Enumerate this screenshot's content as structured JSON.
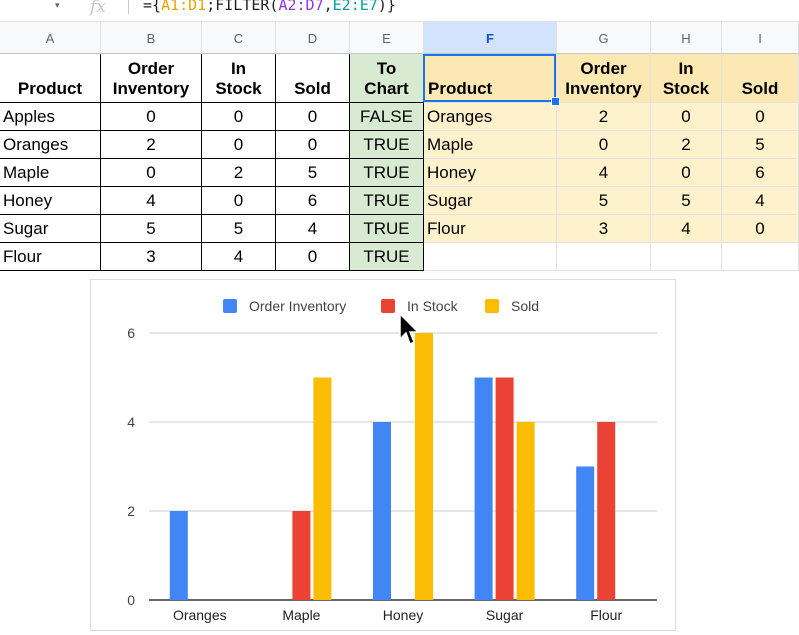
{
  "formula_bar": {
    "dropdown": "▾",
    "fx": "fx",
    "formula_prefix": "={",
    "ref1": "A1:D1",
    "formula_mid": ";FILTER(",
    "ref2": "A2:D7",
    "comma": ",",
    "ref3": "E2:E7",
    "formula_suffix": ")}"
  },
  "columns": [
    "A",
    "B",
    "C",
    "D",
    "E",
    "F",
    "G",
    "H",
    "I"
  ],
  "selected_column": "F",
  "source_table": {
    "headers": [
      "Product",
      "Order\nInventory",
      "In\nStock",
      "Sold",
      "To\nChart"
    ],
    "rows": [
      [
        "Apples",
        "0",
        "0",
        "0",
        "FALSE"
      ],
      [
        "Oranges",
        "2",
        "0",
        "0",
        "TRUE"
      ],
      [
        "Maple",
        "0",
        "2",
        "5",
        "TRUE"
      ],
      [
        "Honey",
        "4",
        "0",
        "6",
        "TRUE"
      ],
      [
        "Sugar",
        "5",
        "5",
        "4",
        "TRUE"
      ],
      [
        "Flour",
        "3",
        "4",
        "0",
        "TRUE"
      ]
    ]
  },
  "filtered_table": {
    "headers": [
      "Product",
      "Order\nInventory",
      "In\nStock",
      "Sold"
    ],
    "rows": [
      [
        "Oranges",
        "2",
        "0",
        "0"
      ],
      [
        "Maple",
        "0",
        "2",
        "5"
      ],
      [
        "Honey",
        "4",
        "0",
        "6"
      ],
      [
        "Sugar",
        "5",
        "5",
        "4"
      ],
      [
        "Flour",
        "3",
        "4",
        "0"
      ]
    ]
  },
  "colors": {
    "green_fill": "#d9ead3",
    "header_yellow": "#fce8b2",
    "row_yellow": "#fef2cd",
    "selection_blue": "#1a73e8"
  },
  "chart_data": {
    "type": "bar",
    "categories": [
      "Oranges",
      "Maple",
      "Honey",
      "Sugar",
      "Flour"
    ],
    "series": [
      {
        "name": "Order Inventory",
        "values": [
          2,
          0,
          4,
          5,
          3
        ],
        "color": "#4285f4"
      },
      {
        "name": "In Stock",
        "values": [
          0,
          2,
          0,
          5,
          4
        ],
        "color": "#ea4335"
      },
      {
        "name": "Sold",
        "values": [
          0,
          5,
          6,
          4,
          0
        ],
        "color": "#fbbc04"
      }
    ],
    "yticks": [
      "0",
      "2",
      "4",
      "6"
    ],
    "ylim": [
      0,
      6
    ],
    "legend": "top",
    "grid": true
  },
  "cursor_icon": "mouse-pointer-icon"
}
